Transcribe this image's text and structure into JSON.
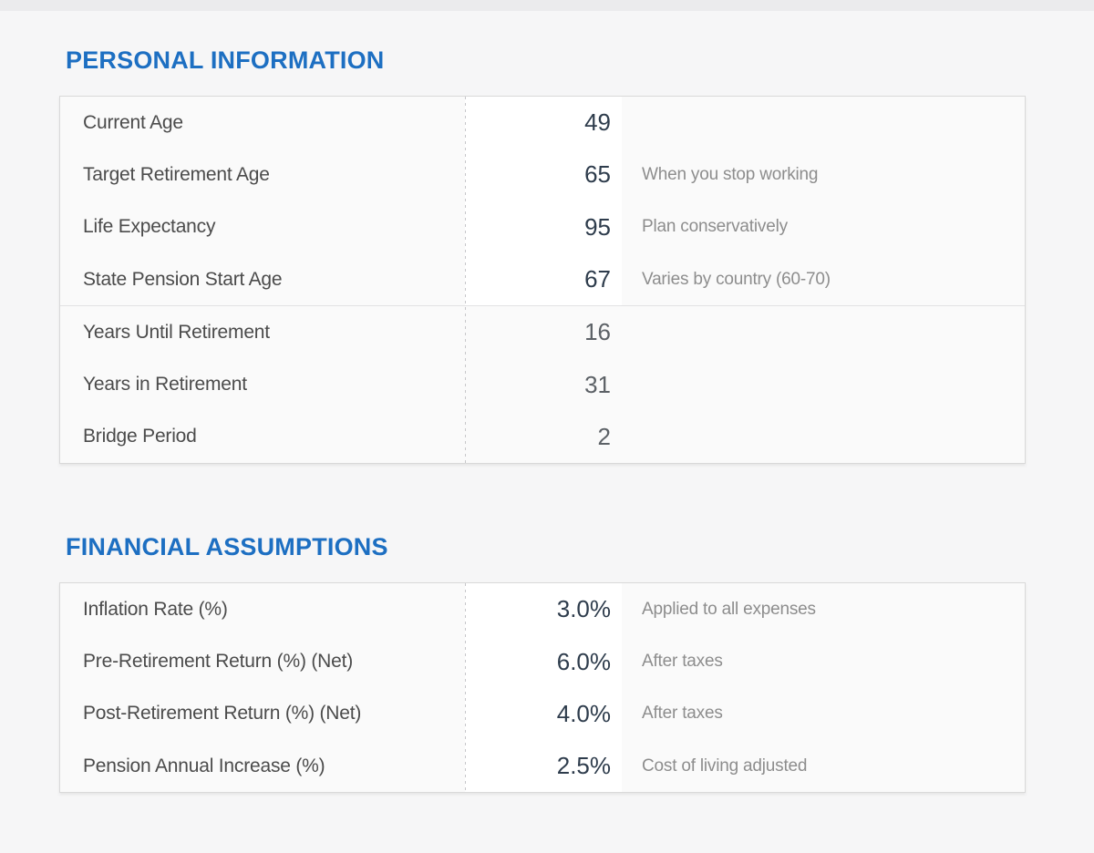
{
  "page": {
    "background": "#f6f6f7",
    "top_strip_color": "#ebebed",
    "accent_blue": "#1d6fc2",
    "label_color": "#4b4b4b",
    "input_value_color": "#2e3c4c",
    "calculated_value_color": "#5c6166",
    "note_color": "#8d8d8d",
    "table_background": "#fafafa",
    "table_border_color": "#d9d9d9"
  },
  "sections": [
    {
      "title": "PERSONAL INFORMATION",
      "rows": [
        {
          "label": "Current Age",
          "value": "49",
          "note": "",
          "type": "input"
        },
        {
          "label": "Target Retirement Age",
          "value": "65",
          "note": "When you stop working",
          "type": "input"
        },
        {
          "label": "Life Expectancy",
          "value": "95",
          "note": "Plan conservatively",
          "type": "input"
        },
        {
          "label": "State Pension Start Age",
          "value": "67",
          "note": "Varies by country (60-70)",
          "type": "input"
        },
        {
          "label": "Years Until Retirement",
          "value": "16",
          "note": "",
          "type": "calculated"
        },
        {
          "label": "Years in Retirement",
          "value": "31",
          "note": "",
          "type": "calculated"
        },
        {
          "label": "Bridge Period",
          "value": "2",
          "note": "",
          "type": "calculated"
        }
      ]
    },
    {
      "title": "FINANCIAL ASSUMPTIONS",
      "rows": [
        {
          "label": "Inflation Rate (%)",
          "value": "3.0%",
          "note": "Applied to all expenses",
          "type": "input"
        },
        {
          "label": "Pre-Retirement Return (%) (Net)",
          "value": "6.0%",
          "note": "After taxes",
          "type": "input"
        },
        {
          "label": "Post-Retirement Return (%) (Net)",
          "value": "4.0%",
          "note": "After taxes",
          "type": "input"
        },
        {
          "label": "Pension Annual Increase (%)",
          "value": "2.5%",
          "note": "Cost of living adjusted",
          "type": "input"
        }
      ]
    }
  ]
}
